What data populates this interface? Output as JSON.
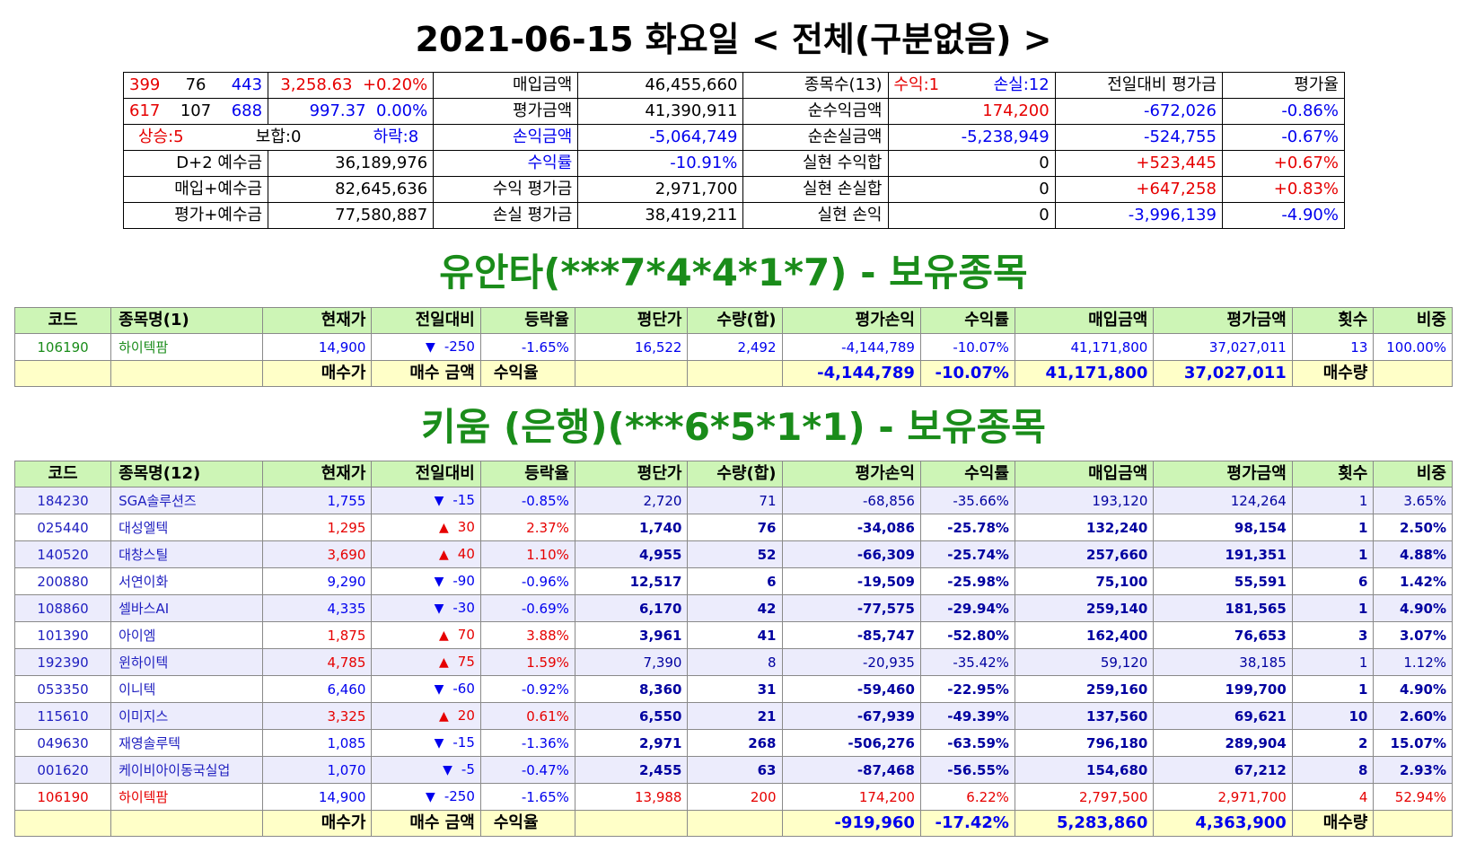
{
  "header": {
    "title": "2021-06-15 화요일 < 전체(구분없음) >"
  },
  "summary": {
    "r1": {
      "a": "399",
      "b": "76",
      "c": "443",
      "idx": "3,258.63",
      "pct": "+0.20%",
      "l1": "매입금액",
      "v1": "46,455,660",
      "l2": "종목수(13)",
      "gain": "수익:1",
      "loss": "손실:12",
      "l3": "전일대비 평가금",
      "l4": "평가율"
    },
    "r2": {
      "a": "617",
      "b": "107",
      "c": "688",
      "idx": "997.37",
      "pct": "0.00%",
      "l1": "평가금액",
      "v1": "41,390,911",
      "l2": "순수익금액",
      "v2": "174,200",
      "v3": "-672,026",
      "v4": "-0.86%"
    },
    "r3": {
      "up": "상승:5",
      "flat": "보합:0",
      "down": "하락:8",
      "l1": "손익금액",
      "v1": "-5,064,749",
      "l2": "순손실금액",
      "v2": "-5,238,949",
      "v3": "-524,755",
      "v4": "-0.67%"
    },
    "r4": {
      "l0": "D+2 예수금",
      "v0": "36,189,976",
      "l1": "수익률",
      "v1": "-10.91%",
      "l2": "실현 수익합",
      "v2": "0",
      "v3": "+523,445",
      "v4": "+0.67%"
    },
    "r5": {
      "l0": "매입+예수금",
      "v0": "82,645,636",
      "l1": "수익 평가금",
      "v1": "2,971,700",
      "l2": "실현 손실합",
      "v2": "0",
      "v3": "+647,258",
      "v4": "+0.83%"
    },
    "r6": {
      "l0": "평가+예수금",
      "v0": "77,580,887",
      "l1": "손실 평가금",
      "v1": "38,419,211",
      "l2": "실현 손익",
      "v2": "0",
      "v3": "-3,996,139",
      "v4": "-4.90%"
    }
  },
  "section1": {
    "title": "유안타(***7*4*4*1*7) - 보유종목",
    "headers": [
      "코드",
      "종목명(1)",
      "현재가",
      "전일대비",
      "등락율",
      "평단가",
      "수량(합)",
      "평가손익",
      "수익률",
      "매입금액",
      "평가금액",
      "횟수",
      "비중"
    ],
    "rows": [
      {
        "code": "106190",
        "name": "하이텍팜",
        "price": "14,900",
        "dir": "down",
        "change": "-250",
        "rate": "-1.65%",
        "avg": "16,522",
        "qty": "2,492",
        "pnl": "-4,144,789",
        "ret": "-10.07%",
        "buy": "41,171,800",
        "eval": "37,027,011",
        "cnt": "13",
        "weight": "100.00%",
        "codeColor": "#1a8c1a",
        "nameColor": "#1a8c1a"
      }
    ],
    "total": {
      "l1": "매수가",
      "l2": "매수 금액",
      "l3": "수익율",
      "pnl": "-4,144,789",
      "ret": "-10.07%",
      "buy": "41,171,800",
      "eval": "37,027,011",
      "l4": "매수량"
    }
  },
  "section2": {
    "title": "키움 (은행)(***6*5*1*1) - 보유종목",
    "headers": [
      "코드",
      "종목명(12)",
      "현재가",
      "전일대비",
      "등락율",
      "평단가",
      "수량(합)",
      "평가손익",
      "수익률",
      "매입금액",
      "평가금액",
      "횟수",
      "비중"
    ],
    "rows": [
      {
        "code": "184230",
        "name": "SGA솔루션즈",
        "price": "1,755",
        "dir": "down",
        "change": "-15",
        "rate": "-0.85%",
        "avg": "2,720",
        "qty": "71",
        "pnl": "-68,856",
        "ret": "-35.66%",
        "buy": "193,120",
        "eval": "124,264",
        "cnt": "1",
        "weight": "3.65%",
        "bold": false
      },
      {
        "code": "025440",
        "name": "대성엘텍",
        "price": "1,295",
        "dir": "up",
        "change": "30",
        "rate": "2.37%",
        "avg": "1,740",
        "qty": "76",
        "pnl": "-34,086",
        "ret": "-25.78%",
        "buy": "132,240",
        "eval": "98,154",
        "cnt": "1",
        "weight": "2.50%",
        "bold": true
      },
      {
        "code": "140520",
        "name": "대창스틸",
        "price": "3,690",
        "dir": "up",
        "change": "40",
        "rate": "1.10%",
        "avg": "4,955",
        "qty": "52",
        "pnl": "-66,309",
        "ret": "-25.74%",
        "buy": "257,660",
        "eval": "191,351",
        "cnt": "1",
        "weight": "4.88%",
        "bold": true
      },
      {
        "code": "200880",
        "name": "서연이화",
        "price": "9,290",
        "dir": "down",
        "change": "-90",
        "rate": "-0.96%",
        "avg": "12,517",
        "qty": "6",
        "pnl": "-19,509",
        "ret": "-25.98%",
        "buy": "75,100",
        "eval": "55,591",
        "cnt": "6",
        "weight": "1.42%",
        "bold": true
      },
      {
        "code": "108860",
        "name": "셀바스AI",
        "price": "4,335",
        "dir": "down",
        "change": "-30",
        "rate": "-0.69%",
        "avg": "6,170",
        "qty": "42",
        "pnl": "-77,575",
        "ret": "-29.94%",
        "buy": "259,140",
        "eval": "181,565",
        "cnt": "1",
        "weight": "4.90%",
        "bold": true
      },
      {
        "code": "101390",
        "name": "아이엠",
        "price": "1,875",
        "dir": "up",
        "change": "70",
        "rate": "3.88%",
        "avg": "3,961",
        "qty": "41",
        "pnl": "-85,747",
        "ret": "-52.80%",
        "buy": "162,400",
        "eval": "76,653",
        "cnt": "3",
        "weight": "3.07%",
        "bold": true
      },
      {
        "code": "192390",
        "name": "윈하이텍",
        "price": "4,785",
        "dir": "up",
        "change": "75",
        "rate": "1.59%",
        "avg": "7,390",
        "qty": "8",
        "pnl": "-20,935",
        "ret": "-35.42%",
        "buy": "59,120",
        "eval": "38,185",
        "cnt": "1",
        "weight": "1.12%",
        "bold": false
      },
      {
        "code": "053350",
        "name": "이니텍",
        "price": "6,460",
        "dir": "down",
        "change": "-60",
        "rate": "-0.92%",
        "avg": "8,360",
        "qty": "31",
        "pnl": "-59,460",
        "ret": "-22.95%",
        "buy": "259,160",
        "eval": "199,700",
        "cnt": "1",
        "weight": "4.90%",
        "bold": true
      },
      {
        "code": "115610",
        "name": "이미지스",
        "price": "3,325",
        "dir": "up",
        "change": "20",
        "rate": "0.61%",
        "avg": "6,550",
        "qty": "21",
        "pnl": "-67,939",
        "ret": "-49.39%",
        "buy": "137,560",
        "eval": "69,621",
        "cnt": "10",
        "weight": "2.60%",
        "bold": true
      },
      {
        "code": "049630",
        "name": "재영솔루텍",
        "price": "1,085",
        "dir": "down",
        "change": "-15",
        "rate": "-1.36%",
        "avg": "2,971",
        "qty": "268",
        "pnl": "-506,276",
        "ret": "-63.59%",
        "buy": "796,180",
        "eval": "289,904",
        "cnt": "2",
        "weight": "15.07%",
        "bold": true
      },
      {
        "code": "001620",
        "name": "케이비아이동국실업",
        "price": "1,070",
        "dir": "down",
        "change": "-5",
        "rate": "-0.47%",
        "avg": "2,455",
        "qty": "63",
        "pnl": "-87,468",
        "ret": "-56.55%",
        "buy": "154,680",
        "eval": "67,212",
        "cnt": "8",
        "weight": "2.93%",
        "bold": true
      },
      {
        "code": "106190",
        "name": "하이텍팜",
        "price": "14,900",
        "dir": "down",
        "change": "-250",
        "rate": "-1.65%",
        "avg": "13,988",
        "qty": "200",
        "pnl": "174,200",
        "ret": "6.22%",
        "buy": "2,797,500",
        "eval": "2,971,700",
        "cnt": "4",
        "weight": "52.94%",
        "bold": false,
        "highlight": true
      }
    ],
    "total": {
      "l1": "매수가",
      "l2": "매수 금액",
      "l3": "수익율",
      "pnl": "-919,960",
      "ret": "-17.42%",
      "buy": "5,283,860",
      "eval": "4,363,900",
      "l4": "매수량"
    }
  },
  "colors": {
    "up": "#e60000",
    "down": "#0000ee",
    "header_bg": "#cdf5b6",
    "total_bg": "#ffffc8",
    "alt_row": "#ececfc",
    "section_title": "#1a8c1a"
  },
  "icons": {
    "up": "triangle-up-icon",
    "down": "triangle-down-icon"
  }
}
